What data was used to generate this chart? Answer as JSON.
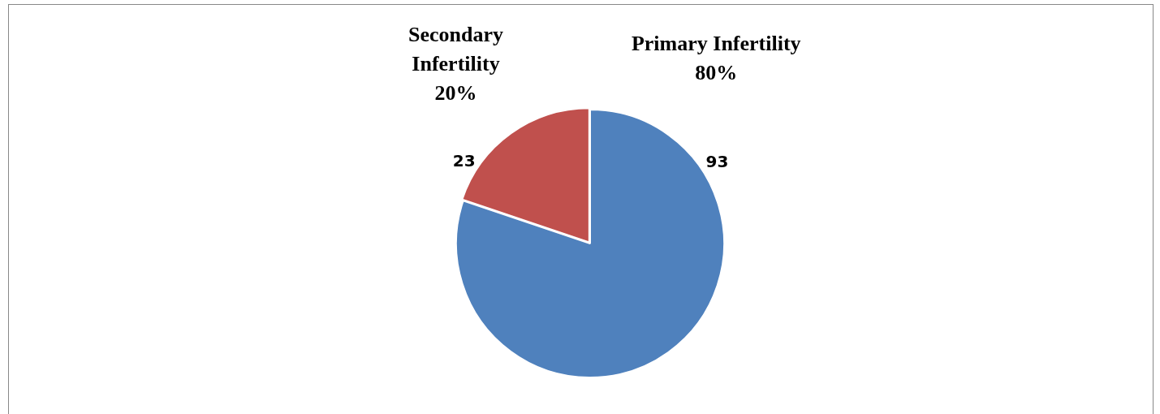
{
  "chart_data": {
    "type": "pie",
    "categories": [
      "Primary Infertility",
      "Secondary Infertility"
    ],
    "values": [
      93,
      23
    ],
    "colors": [
      "#4f81bd",
      "#c0504d"
    ],
    "data_labels": true,
    "annotations": [
      "80%",
      "20%"
    ],
    "legend": false
  }
}
